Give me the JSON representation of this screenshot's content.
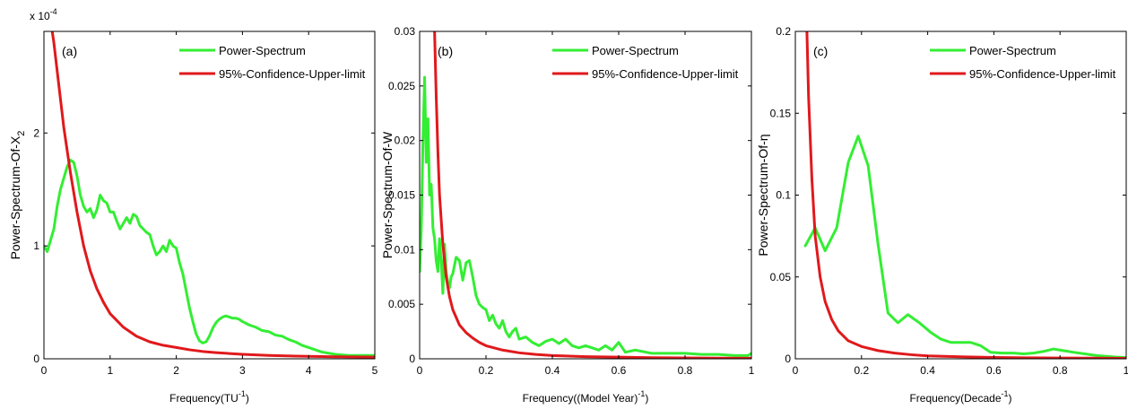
{
  "colors": {
    "spectrum": "#33ee33",
    "limit": "#e0191c",
    "axis": "#000000"
  },
  "chart_data": [
    {
      "type": "line",
      "panel_label": "(a)",
      "xlabel_main": "Frequency(TU",
      "xlabel_sup": "-1",
      "xlabel_tail": ")",
      "ylabel_main": "Power-Spectrum-Of-X",
      "ylabel_sub": "2",
      "exponent_base": "x 10",
      "exponent_power": "-4",
      "xlim": [
        0,
        5
      ],
      "ylim": [
        0,
        2.9
      ],
      "xticks": [
        0,
        1,
        2,
        3,
        4,
        5
      ],
      "xtick_labels": [
        "0",
        "1",
        "2",
        "3",
        "4",
        "5"
      ],
      "yticks": [
        0,
        1,
        2
      ],
      "ytick_labels": [
        "0",
        "1",
        "2"
      ],
      "legend": [
        "Power-Spectrum",
        "95%-Confidence-Upper-limit"
      ],
      "series": [
        {
          "name": "Power-Spectrum",
          "x": [
            0.0,
            0.05,
            0.1,
            0.15,
            0.2,
            0.25,
            0.3,
            0.35,
            0.4,
            0.45,
            0.5,
            0.55,
            0.6,
            0.65,
            0.7,
            0.75,
            0.8,
            0.85,
            0.9,
            0.95,
            1.0,
            1.05,
            1.1,
            1.15,
            1.2,
            1.25,
            1.3,
            1.35,
            1.4,
            1.45,
            1.5,
            1.55,
            1.6,
            1.65,
            1.7,
            1.75,
            1.8,
            1.85,
            1.9,
            1.95,
            2.0,
            2.05,
            2.1,
            2.15,
            2.2,
            2.25,
            2.3,
            2.35,
            2.4,
            2.45,
            2.5,
            2.55,
            2.6,
            2.65,
            2.7,
            2.75,
            2.8,
            2.85,
            2.9,
            2.95,
            3.0,
            3.1,
            3.2,
            3.3,
            3.4,
            3.5,
            3.6,
            3.7,
            3.8,
            3.9,
            4.0,
            4.1,
            4.2,
            4.3,
            4.4,
            4.5,
            4.6,
            4.7,
            4.8,
            4.9,
            5.0
          ],
          "y": [
            1.0,
            0.95,
            1.05,
            1.15,
            1.35,
            1.5,
            1.6,
            1.7,
            1.76,
            1.74,
            1.62,
            1.45,
            1.35,
            1.3,
            1.33,
            1.25,
            1.32,
            1.45,
            1.4,
            1.38,
            1.3,
            1.3,
            1.22,
            1.15,
            1.2,
            1.25,
            1.2,
            1.28,
            1.26,
            1.18,
            1.15,
            1.12,
            1.1,
            1.0,
            0.92,
            0.95,
            1.0,
            0.95,
            1.05,
            1.0,
            0.98,
            0.85,
            0.75,
            0.6,
            0.45,
            0.33,
            0.22,
            0.16,
            0.14,
            0.15,
            0.2,
            0.27,
            0.32,
            0.35,
            0.37,
            0.38,
            0.37,
            0.36,
            0.36,
            0.35,
            0.33,
            0.3,
            0.28,
            0.25,
            0.24,
            0.21,
            0.2,
            0.17,
            0.15,
            0.12,
            0.1,
            0.08,
            0.06,
            0.05,
            0.04,
            0.035,
            0.03,
            0.03,
            0.03,
            0.03,
            0.03
          ]
        },
        {
          "name": "95%-Confidence-Upper-limit",
          "x": [
            0.1,
            0.15,
            0.2,
            0.25,
            0.3,
            0.35,
            0.4,
            0.5,
            0.6,
            0.7,
            0.8,
            0.9,
            1.0,
            1.2,
            1.4,
            1.6,
            1.8,
            2.0,
            2.2,
            2.4,
            2.6,
            2.8,
            3.0,
            3.2,
            3.4,
            3.6,
            3.8,
            4.0,
            4.2,
            4.4,
            4.6,
            4.8,
            5.0
          ],
          "y": [
            3.0,
            2.8,
            2.55,
            2.3,
            2.05,
            1.85,
            1.65,
            1.3,
            1.0,
            0.78,
            0.62,
            0.5,
            0.4,
            0.28,
            0.2,
            0.15,
            0.12,
            0.1,
            0.08,
            0.065,
            0.055,
            0.047,
            0.04,
            0.035,
            0.03,
            0.027,
            0.024,
            0.022,
            0.02,
            0.018,
            0.017,
            0.016,
            0.015
          ]
        }
      ]
    },
    {
      "type": "line",
      "panel_label": "(b)",
      "xlabel_main": "Frequency((Model Year)",
      "xlabel_sup": "-1",
      "xlabel_tail": ")",
      "ylabel_main": "Power-Spectrum-Of-W",
      "ylabel_sub": "",
      "exponent_base": "",
      "exponent_power": "",
      "xlim": [
        0,
        1
      ],
      "ylim": [
        0,
        0.03
      ],
      "xticks": [
        0,
        0.2,
        0.4,
        0.6,
        0.8,
        1
      ],
      "xtick_labels": [
        "0",
        "0.2",
        "0.4",
        "0.6",
        "0.8",
        "1"
      ],
      "yticks": [
        0,
        0.005,
        0.01,
        0.015,
        0.02,
        0.025,
        0.03
      ],
      "ytick_labels": [
        "0",
        "0.005",
        "0.01",
        "0.015",
        "0.02",
        "0.025",
        "0.03"
      ],
      "legend": [
        "Power-Spectrum",
        "95%-Confidence-Upper-limit"
      ],
      "series": [
        {
          "name": "Power-Spectrum",
          "x": [
            0.0,
            0.005,
            0.01,
            0.015,
            0.02,
            0.025,
            0.03,
            0.035,
            0.04,
            0.045,
            0.05,
            0.055,
            0.06,
            0.065,
            0.07,
            0.075,
            0.08,
            0.085,
            0.09,
            0.095,
            0.1,
            0.11,
            0.12,
            0.13,
            0.14,
            0.15,
            0.16,
            0.17,
            0.18,
            0.19,
            0.2,
            0.21,
            0.22,
            0.23,
            0.24,
            0.25,
            0.26,
            0.27,
            0.28,
            0.29,
            0.3,
            0.32,
            0.34,
            0.36,
            0.38,
            0.4,
            0.42,
            0.44,
            0.46,
            0.48,
            0.5,
            0.52,
            0.54,
            0.56,
            0.58,
            0.6,
            0.62,
            0.65,
            0.7,
            0.75,
            0.8,
            0.85,
            0.9,
            0.95,
            0.99,
            1.0
          ],
          "y": [
            0.008,
            0.012,
            0.02,
            0.0258,
            0.018,
            0.022,
            0.015,
            0.016,
            0.012,
            0.011,
            0.009,
            0.008,
            0.011,
            0.009,
            0.006,
            0.0105,
            0.008,
            0.007,
            0.0065,
            0.0075,
            0.0078,
            0.0093,
            0.009,
            0.0072,
            0.0088,
            0.009,
            0.0075,
            0.0058,
            0.005,
            0.0047,
            0.0045,
            0.0035,
            0.004,
            0.0032,
            0.0028,
            0.0035,
            0.0025,
            0.002,
            0.0025,
            0.0028,
            0.0018,
            0.002,
            0.0015,
            0.0012,
            0.0016,
            0.0018,
            0.0014,
            0.0018,
            0.0012,
            0.001,
            0.0012,
            0.001,
            0.0008,
            0.0012,
            0.0008,
            0.0015,
            0.0006,
            0.0008,
            0.0005,
            0.0005,
            0.0005,
            0.0004,
            0.0004,
            0.0003,
            0.0003,
            0.0005
          ]
        },
        {
          "name": "95%-Confidence-Upper-limit",
          "x": [
            0.045,
            0.05,
            0.055,
            0.06,
            0.07,
            0.08,
            0.09,
            0.1,
            0.12,
            0.14,
            0.16,
            0.18,
            0.2,
            0.25,
            0.3,
            0.35,
            0.4,
            0.5,
            0.6,
            0.7,
            0.8,
            0.9,
            1.0
          ],
          "y": [
            0.03,
            0.024,
            0.019,
            0.015,
            0.0105,
            0.0075,
            0.0057,
            0.0045,
            0.0031,
            0.0024,
            0.0019,
            0.0015,
            0.0012,
            0.0008,
            0.00055,
            0.0004,
            0.0003,
            0.0002,
            0.00015,
            0.0001,
            8e-05,
            6e-05,
            5e-05
          ]
        }
      ]
    },
    {
      "type": "line",
      "panel_label": "(c)",
      "xlabel_main": "Frequency(Decade",
      "xlabel_sup": "-1",
      "xlabel_tail": ")",
      "ylabel_main": "Power-Spectrum-Of-η",
      "ylabel_sub": "",
      "exponent_base": "",
      "exponent_power": "",
      "xlim": [
        0,
        1
      ],
      "ylim": [
        0,
        0.2
      ],
      "xticks": [
        0,
        0.2,
        0.4,
        0.6,
        0.8,
        1
      ],
      "xtick_labels": [
        "0",
        "0.2",
        "0.4",
        "0.6",
        "0.8",
        "1"
      ],
      "yticks": [
        0,
        0.05,
        0.1,
        0.15,
        0.2
      ],
      "ytick_labels": [
        "0",
        "0.05",
        "0.1",
        "0.15",
        "0.2"
      ],
      "legend": [
        "Power-Spectrum",
        "95%-Confidence-Upper-limit"
      ],
      "series": [
        {
          "name": "Power-Spectrum",
          "x": [
            0.03,
            0.06,
            0.09,
            0.125,
            0.16,
            0.19,
            0.22,
            0.25,
            0.28,
            0.31,
            0.34,
            0.375,
            0.41,
            0.44,
            0.47,
            0.5,
            0.53,
            0.56,
            0.59,
            0.625,
            0.66,
            0.69,
            0.72,
            0.75,
            0.78,
            0.81,
            0.84,
            0.875,
            0.91,
            0.94,
            0.97,
            1.0
          ],
          "y": [
            0.069,
            0.08,
            0.066,
            0.08,
            0.12,
            0.136,
            0.118,
            0.07,
            0.028,
            0.022,
            0.027,
            0.022,
            0.016,
            0.012,
            0.01,
            0.01,
            0.01,
            0.008,
            0.004,
            0.0035,
            0.0035,
            0.003,
            0.0035,
            0.0045,
            0.006,
            0.005,
            0.004,
            0.003,
            0.002,
            0.0015,
            0.001,
            0.0008
          ]
        },
        {
          "name": "95%-Confidence-Upper-limit",
          "x": [
            0.035,
            0.04,
            0.05,
            0.06,
            0.075,
            0.09,
            0.11,
            0.13,
            0.16,
            0.2,
            0.25,
            0.3,
            0.35,
            0.4,
            0.5,
            0.6,
            0.7,
            0.8,
            0.9,
            1.0
          ],
          "y": [
            0.2,
            0.16,
            0.11,
            0.075,
            0.05,
            0.035,
            0.024,
            0.017,
            0.011,
            0.0075,
            0.005,
            0.0035,
            0.0025,
            0.0018,
            0.0012,
            0.0008,
            0.0006,
            0.0005,
            0.0004,
            0.0003
          ]
        }
      ]
    }
  ]
}
